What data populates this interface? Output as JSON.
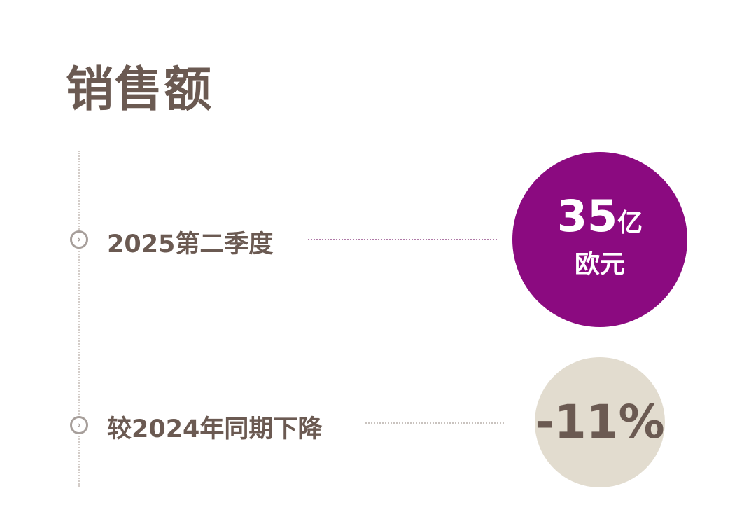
{
  "title": "销售额",
  "rows": [
    {
      "label": "2025第二季度",
      "value_number": "35",
      "value_unit": "亿",
      "value_currency": "欧元",
      "icon": "chevron-circle-right-icon"
    },
    {
      "label": "较2024年同期下降",
      "value": "-11%",
      "icon": "chevron-circle-right-icon"
    }
  ],
  "colors": {
    "text": "#6b5a52",
    "accent_purple": "#8b0a80",
    "beige": "#e2dccf"
  }
}
